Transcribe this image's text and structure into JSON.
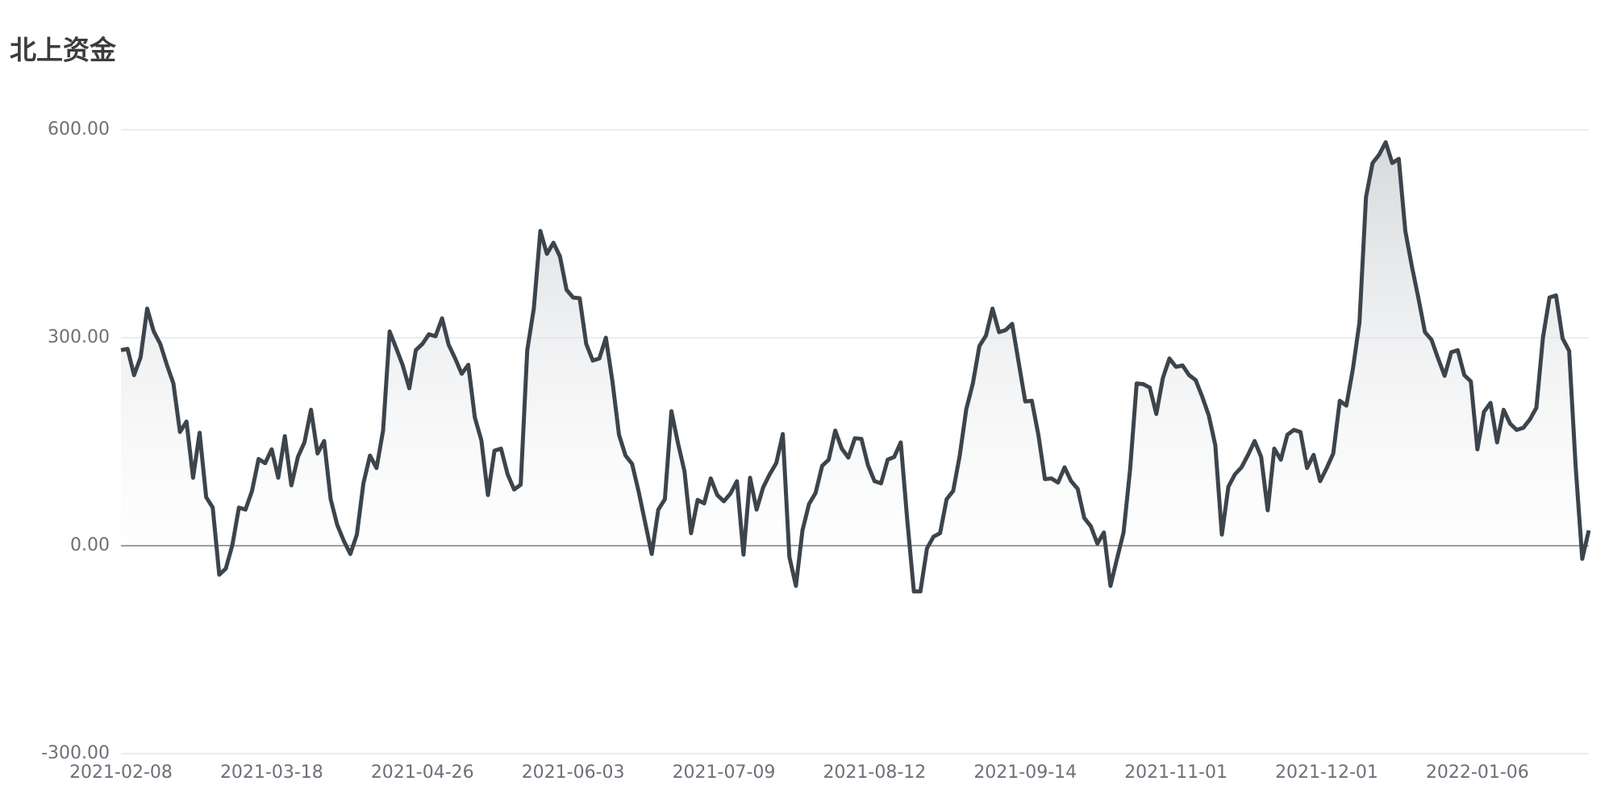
{
  "chart_data": {
    "type": "line",
    "title": "北上资金",
    "categories": [
      "2021-02-08",
      null,
      null,
      null,
      null,
      null,
      null,
      null,
      null,
      null,
      null,
      null,
      null,
      null,
      null,
      null,
      null,
      null,
      null,
      null,
      null,
      null,
      null,
      "2021-03-18",
      null,
      null,
      null,
      null,
      null,
      null,
      null,
      null,
      null,
      null,
      null,
      null,
      null,
      null,
      null,
      null,
      null,
      null,
      null,
      null,
      null,
      null,
      "2021-04-26",
      null,
      null,
      null,
      null,
      null,
      null,
      null,
      null,
      null,
      null,
      null,
      null,
      null,
      null,
      null,
      null,
      null,
      null,
      null,
      null,
      null,
      null,
      "2021-06-03",
      null,
      null,
      null,
      null,
      null,
      null,
      null,
      null,
      null,
      null,
      null,
      null,
      null,
      null,
      null,
      null,
      null,
      null,
      null,
      null,
      null,
      null,
      "2021-07-09",
      null,
      null,
      null,
      null,
      null,
      null,
      null,
      null,
      null,
      null,
      null,
      null,
      null,
      null,
      null,
      null,
      null,
      null,
      null,
      null,
      null,
      null,
      "2021-08-12",
      null,
      null,
      null,
      null,
      null,
      null,
      null,
      null,
      null,
      null,
      null,
      null,
      null,
      null,
      null,
      null,
      null,
      null,
      null,
      null,
      null,
      null,
      "2021-09-14",
      null,
      null,
      null,
      null,
      null,
      null,
      null,
      null,
      null,
      null,
      null,
      null,
      null,
      null,
      null,
      null,
      null,
      null,
      null,
      null,
      null,
      null,
      "2021-11-01",
      null,
      null,
      null,
      null,
      null,
      null,
      null,
      null,
      null,
      null,
      null,
      null,
      null,
      null,
      null,
      null,
      null,
      null,
      null,
      null,
      null,
      null,
      "2021-12-01",
      null,
      null,
      null,
      null,
      null,
      null,
      null,
      null,
      null,
      null,
      null,
      null,
      null,
      null,
      null,
      null,
      null,
      null,
      null,
      null,
      null,
      null,
      "2022-01-06",
      null,
      null,
      null,
      null,
      null,
      null,
      null,
      null,
      null,
      null,
      null,
      null,
      null,
      null,
      null,
      null,
      null
    ],
    "values": [
      282,
      284,
      246,
      272,
      342,
      309,
      291,
      261,
      234,
      164,
      179,
      98,
      163,
      70,
      55,
      -42,
      -33,
      1,
      55,
      52,
      79,
      125,
      119,
      139,
      98,
      158,
      87,
      128,
      149,
      196,
      133,
      151,
      67,
      30,
      7,
      -12,
      16,
      90,
      130,
      112,
      166,
      309,
      285,
      260,
      227,
      282,
      291,
      305,
      302,
      328,
      290,
      270,
      248,
      261,
      185,
      152,
      73,
      137,
      140,
      103,
      81,
      88,
      282,
      342,
      454,
      421,
      437,
      417,
      369,
      358,
      357,
      291,
      267,
      270,
      300,
      237,
      160,
      130,
      118,
      78,
      33,
      -12,
      52,
      67,
      194,
      148,
      107,
      18,
      66,
      61,
      97,
      73,
      64,
      75,
      93,
      -13,
      98,
      52,
      84,
      103,
      119,
      161,
      -16,
      -58,
      22,
      60,
      76,
      115,
      124,
      166,
      140,
      127,
      155,
      154,
      116,
      93,
      90,
      124,
      128,
      149,
      36,
      -66,
      -66,
      -4,
      13,
      18,
      67,
      79,
      130,
      197,
      234,
      288,
      303,
      342,
      308,
      311,
      320,
      264,
      208,
      209,
      160,
      96,
      97,
      91,
      113,
      93,
      82,
      40,
      28,
      3,
      19,
      -58,
      -19,
      19,
      110,
      234,
      233,
      228,
      190,
      242,
      270,
      258,
      260,
      246,
      239,
      215,
      188,
      145,
      16,
      85,
      103,
      113,
      131,
      151,
      128,
      51,
      140,
      124,
      160,
      167,
      164,
      112,
      131,
      93,
      112,
      133,
      209,
      202,
      255,
      322,
      503,
      552,
      564,
      582,
      552,
      558,
      454,
      403,
      357,
      308,
      297,
      270,
      245,
      279,
      282,
      246,
      237,
      139,
      193,
      206,
      149,
      196,
      176,
      167,
      170,
      182,
      199,
      300,
      358,
      361,
      299,
      281,
      113,
      -19,
      22
    ],
    "color": "#3c444c",
    "ylim": [
      -300,
      600
    ],
    "yticks": [
      {
        "value": -300,
        "label": "-300.00"
      },
      {
        "value": 0,
        "label": "0.00"
      },
      {
        "value": 300,
        "label": "300.00"
      },
      {
        "value": 600,
        "label": "600.00"
      }
    ],
    "grid": true
  }
}
